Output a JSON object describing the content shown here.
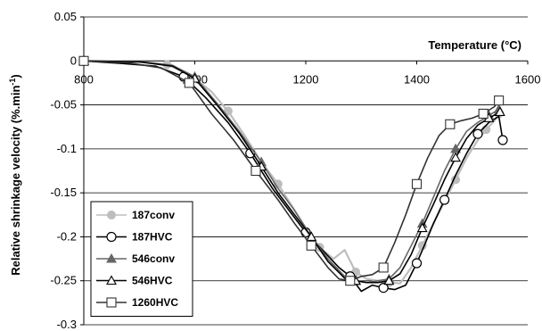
{
  "chart_data": {
    "type": "line",
    "title": "",
    "xlabel": "Temperature (°C)",
    "ylabel": "Relative shrinkage velocity (%.min",
    "ylabel_superscript": "-1",
    "ylabel_close": ")",
    "xlim": [
      800,
      1600
    ],
    "ylim": [
      -0.3,
      0.05
    ],
    "x_ticks": [
      800,
      1000,
      1200,
      1400,
      1600
    ],
    "y_ticks": [
      0.05,
      0,
      -0.05,
      -0.1,
      -0.15,
      -0.2,
      -0.25,
      -0.3
    ],
    "grid": "horizontal",
    "legend_position": "bottom-left",
    "series": [
      {
        "name": "187conv",
        "color": "#bdbdbd",
        "marker": "circle-filled",
        "x": [
          800,
          815,
          900,
          950,
          990,
          1030,
          1060,
          1090,
          1120,
          1150,
          1175,
          1200,
          1225,
          1250,
          1270,
          1290,
          1310,
          1330,
          1350,
          1370,
          1390,
          1410,
          1430,
          1450,
          1470,
          1490,
          1510,
          1525,
          1540,
          1548
        ],
        "y": [
          0,
          0,
          -0.001,
          -0.004,
          -0.015,
          -0.035,
          -0.057,
          -0.085,
          -0.115,
          -0.14,
          -0.165,
          -0.19,
          -0.212,
          -0.225,
          -0.215,
          -0.24,
          -0.248,
          -0.25,
          -0.252,
          -0.253,
          -0.235,
          -0.21,
          -0.185,
          -0.16,
          -0.135,
          -0.11,
          -0.09,
          -0.078,
          -0.068,
          -0.06
        ]
      },
      {
        "name": "187HVC",
        "color": "#000000",
        "marker": "circle-open",
        "x": [
          800,
          870,
          930,
          980,
          1020,
          1060,
          1100,
          1140,
          1170,
          1200,
          1230,
          1260,
          1280,
          1300,
          1320,
          1340,
          1360,
          1380,
          1400,
          1415,
          1430,
          1450,
          1470,
          1490,
          1510,
          1530,
          1548,
          1555
        ],
        "y": [
          0,
          -0.003,
          -0.006,
          -0.018,
          -0.042,
          -0.07,
          -0.105,
          -0.145,
          -0.17,
          -0.195,
          -0.215,
          -0.235,
          -0.245,
          -0.262,
          -0.255,
          -0.258,
          -0.26,
          -0.255,
          -0.23,
          -0.208,
          -0.185,
          -0.158,
          -0.13,
          -0.105,
          -0.083,
          -0.07,
          -0.063,
          -0.09
        ]
      },
      {
        "name": "546conv",
        "color": "#666666",
        "marker": "triangle-filled",
        "x": [
          800,
          900,
          960,
          1000,
          1040,
          1080,
          1120,
          1150,
          1180,
          1210,
          1240,
          1270,
          1290,
          1310,
          1330,
          1350,
          1370,
          1390,
          1410,
          1430,
          1450,
          1470,
          1490,
          1510,
          1530,
          1548
        ],
        "y": [
          0,
          -0.001,
          -0.005,
          -0.018,
          -0.048,
          -0.08,
          -0.115,
          -0.145,
          -0.17,
          -0.2,
          -0.225,
          -0.245,
          -0.25,
          -0.252,
          -0.25,
          -0.248,
          -0.235,
          -0.21,
          -0.185,
          -0.155,
          -0.125,
          -0.1,
          -0.08,
          -0.07,
          -0.062,
          -0.055
        ]
      },
      {
        "name": "546HVC",
        "color": "#000000",
        "marker": "triangle-open",
        "x": [
          800,
          900,
          960,
          1000,
          1040,
          1080,
          1120,
          1150,
          1180,
          1210,
          1240,
          1270,
          1290,
          1310,
          1330,
          1350,
          1370,
          1390,
          1410,
          1430,
          1450,
          1470,
          1490,
          1510,
          1530,
          1550
        ],
        "y": [
          0,
          -0.001,
          -0.006,
          -0.02,
          -0.05,
          -0.082,
          -0.12,
          -0.15,
          -0.175,
          -0.2,
          -0.228,
          -0.247,
          -0.25,
          -0.252,
          -0.252,
          -0.25,
          -0.242,
          -0.22,
          -0.19,
          -0.163,
          -0.135,
          -0.11,
          -0.088,
          -0.073,
          -0.065,
          -0.058
        ]
      },
      {
        "name": "1260HVC",
        "color": "#333333",
        "marker": "square-open",
        "x": [
          800,
          880,
          940,
          990,
          1030,
          1070,
          1110,
          1150,
          1180,
          1210,
          1240,
          1260,
          1280,
          1300,
          1320,
          1340,
          1360,
          1380,
          1400,
          1420,
          1440,
          1460,
          1480,
          1500,
          1520,
          1540,
          1548
        ],
        "y": [
          0,
          -0.002,
          -0.008,
          -0.025,
          -0.06,
          -0.09,
          -0.125,
          -0.158,
          -0.185,
          -0.21,
          -0.235,
          -0.248,
          -0.25,
          -0.245,
          -0.243,
          -0.235,
          -0.207,
          -0.175,
          -0.14,
          -0.11,
          -0.085,
          -0.072,
          -0.068,
          -0.065,
          -0.06,
          -0.052,
          -0.045
        ]
      }
    ]
  }
}
